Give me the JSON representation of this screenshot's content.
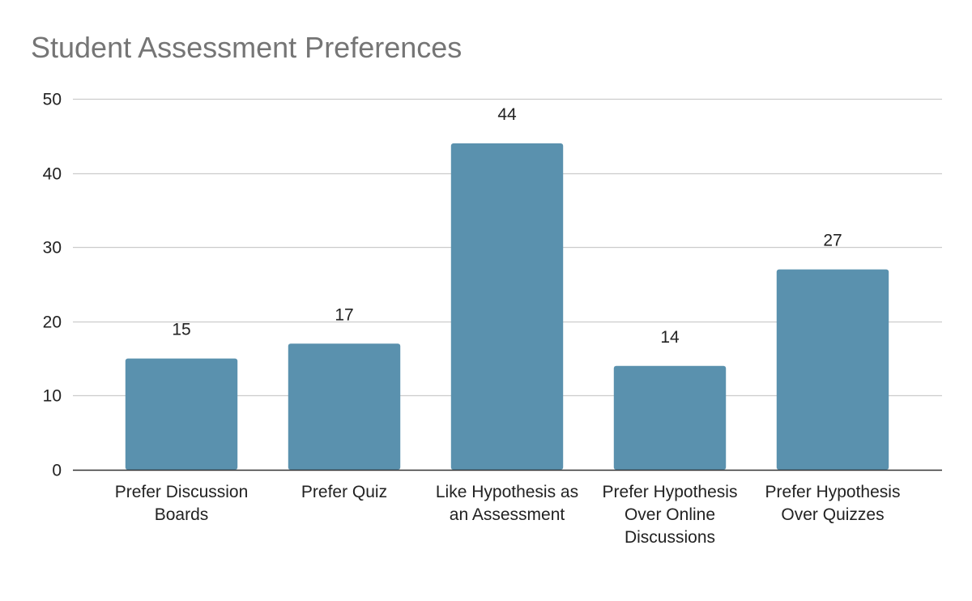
{
  "chart_data": {
    "type": "bar",
    "title": "Student Assessment Preferences",
    "xlabel": "",
    "ylabel": "",
    "categories": [
      "Prefer Discussion Boards",
      "Prefer Quiz",
      "Like Hypothesis as an Assessment",
      "Prefer Hypothesis Over Online Discussions",
      "Prefer Hypothesis Over Quizzes"
    ],
    "values": [
      15,
      17,
      44,
      14,
      27
    ],
    "ylim": [
      0,
      50
    ],
    "yticks": [
      0,
      10,
      20,
      30,
      40,
      50
    ],
    "grid": true,
    "legend": "none",
    "bar_color": "#5a91ae",
    "data_labels": true
  }
}
